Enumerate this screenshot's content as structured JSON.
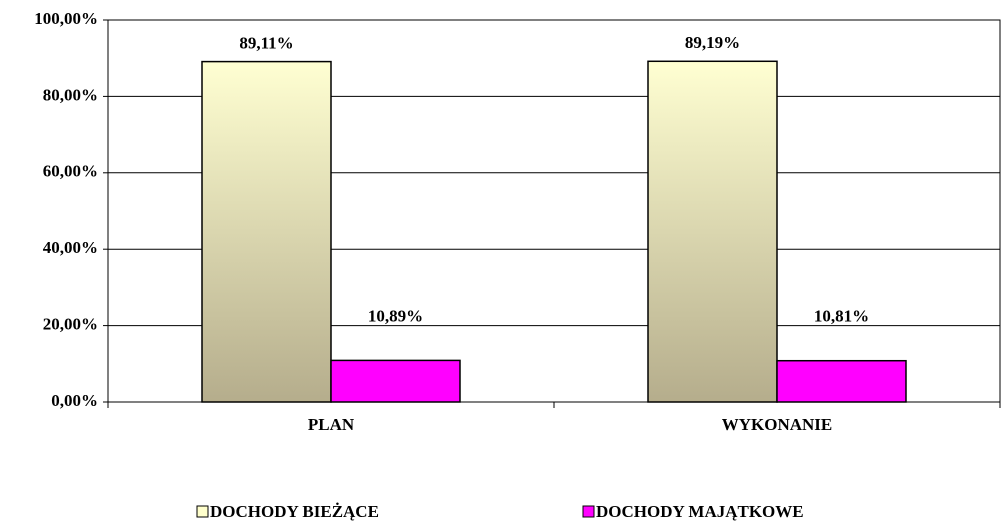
{
  "chart_data": {
    "type": "bar",
    "categories": [
      "PLAN",
      "WYKONANIE"
    ],
    "series": [
      {
        "name": "DOCHODY BIEŻĄCE",
        "color": "#ffffcc",
        "values": [
          89.11,
          89.19
        ],
        "value_labels": [
          "89,11%",
          "89,19%"
        ]
      },
      {
        "name": "DOCHODY MAJĄTKOWE",
        "color": "#ff00ff",
        "values": [
          10.89,
          10.81
        ],
        "value_labels": [
          "10,89%",
          "10,81%"
        ]
      }
    ],
    "ylim": [
      0,
      100
    ],
    "yticks": [
      {
        "value": 0,
        "label": "0,00%"
      },
      {
        "value": 20,
        "label": "20,00%"
      },
      {
        "value": 40,
        "label": "40,00%"
      },
      {
        "value": 60,
        "label": "60,00%"
      },
      {
        "value": 80,
        "label": "80,00%"
      },
      {
        "value": 100,
        "label": "100,00%"
      }
    ],
    "grid": true,
    "legend": "bottom"
  }
}
